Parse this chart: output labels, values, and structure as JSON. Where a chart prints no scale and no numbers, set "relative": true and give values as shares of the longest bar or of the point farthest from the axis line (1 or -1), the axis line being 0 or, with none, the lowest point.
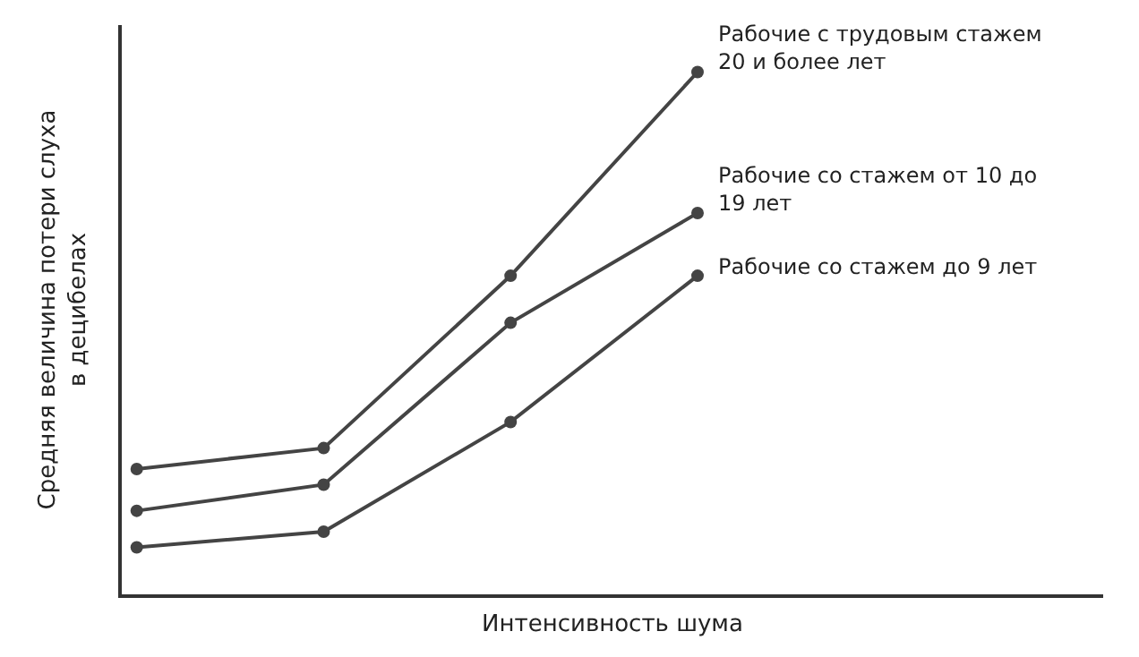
{
  "chart_data": {
    "type": "line",
    "relative": true,
    "xlabel": "Интенсивность шума",
    "ylabel": "Средняя величина потери слуха\nв децибелах",
    "categories": [
      null,
      null,
      null,
      null
    ],
    "series": [
      {
        "name": "Рабочие с трудовым стажем\n20 и более лет",
        "color": "#444444",
        "values": [
          0.24,
          0.28,
          0.61,
          1
        ]
      },
      {
        "name": "Рабочие со стажем от 10 до\n19 лет",
        "color": "#444444",
        "values": [
          0.16,
          0.21,
          0.52,
          0.73
        ]
      },
      {
        "name": "Рабочие со стажем до 9 лет",
        "color": "#444444",
        "values": [
          0.09,
          0.12,
          0.33,
          0.61
        ]
      }
    ],
    "marker": "circle",
    "line_style": "solid",
    "legend": false
  }
}
